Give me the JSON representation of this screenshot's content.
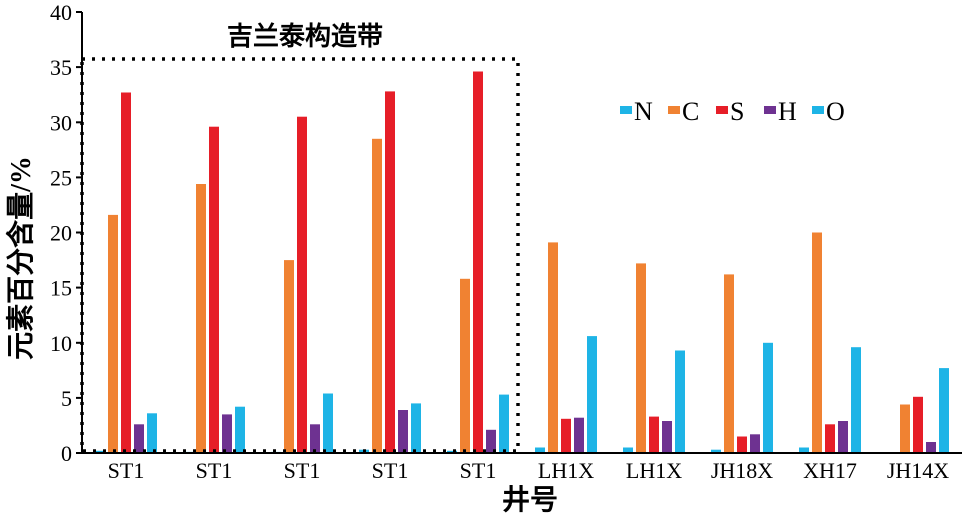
{
  "chart_data": {
    "type": "bar",
    "title": "",
    "annotation": "吉兰泰构造带",
    "xlabel": "井号",
    "ylabel": "元素百分含量/%",
    "ylim": [
      0,
      40
    ],
    "yticks": [
      "0",
      "5",
      "10",
      "15",
      "20",
      "25",
      "30",
      "35",
      "40"
    ],
    "categories": [
      "ST1",
      "ST1",
      "ST1",
      "ST1",
      "ST1",
      "LH1X",
      "LH1X",
      "JH18X",
      "XH17",
      "JH14X"
    ],
    "legend_position": "top-right",
    "grid": false,
    "series": [
      {
        "name": "N",
        "color": "#1eb4e6",
        "values": [
          0.2,
          0.1,
          0.1,
          0.3,
          0.2,
          0.5,
          0.5,
          0.3,
          0.5,
          0.0
        ]
      },
      {
        "name": "C",
        "color": "#f08232",
        "values": [
          21.6,
          24.4,
          17.5,
          28.5,
          15.8,
          19.1,
          17.2,
          16.2,
          20.0,
          4.4
        ]
      },
      {
        "name": "S",
        "color": "#e61e28",
        "values": [
          32.7,
          29.6,
          30.5,
          32.8,
          34.6,
          3.1,
          3.3,
          1.5,
          2.6,
          5.1
        ]
      },
      {
        "name": "H",
        "color": "#6e3291",
        "values": [
          2.6,
          3.5,
          2.6,
          3.9,
          2.1,
          3.2,
          2.9,
          1.7,
          2.9,
          1.0
        ]
      },
      {
        "name": "O",
        "color": "#1eb4e6",
        "values": [
          3.6,
          4.2,
          5.4,
          4.5,
          5.3,
          10.6,
          9.3,
          10.0,
          9.6,
          7.7
        ]
      }
    ]
  }
}
